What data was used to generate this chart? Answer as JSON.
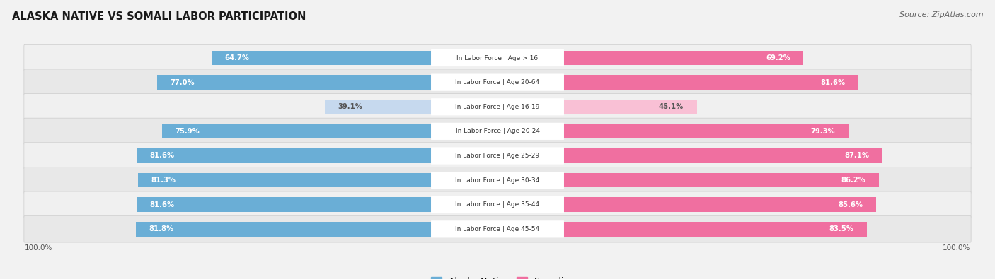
{
  "title": "ALASKA NATIVE VS SOMALI LABOR PARTICIPATION",
  "source": "Source: ZipAtlas.com",
  "categories": [
    "In Labor Force | Age > 16",
    "In Labor Force | Age 20-64",
    "In Labor Force | Age 16-19",
    "In Labor Force | Age 20-24",
    "In Labor Force | Age 25-29",
    "In Labor Force | Age 30-34",
    "In Labor Force | Age 35-44",
    "In Labor Force | Age 45-54"
  ],
  "alaska_values": [
    64.7,
    77.0,
    39.1,
    75.9,
    81.6,
    81.3,
    81.6,
    81.8
  ],
  "somali_values": [
    69.2,
    81.6,
    45.1,
    79.3,
    87.1,
    86.2,
    85.6,
    83.5
  ],
  "alaska_color": "#6aaed6",
  "alaska_color_light": "#c6d9ee",
  "somali_color": "#f06fa0",
  "somali_color_light": "#f9c0d5",
  "row_bg_color": "#e8e8e8",
  "row_bg_white": "#f0f0f0",
  "fig_bg": "#f2f2f2",
  "label_white": "#ffffff",
  "label_dark": "#555555",
  "center_label_color": "#333333",
  "legend_alaska": "Alaska Native",
  "legend_somali": "Somali",
  "x_axis_label_left": "100.0%",
  "x_axis_label_right": "100.0%"
}
